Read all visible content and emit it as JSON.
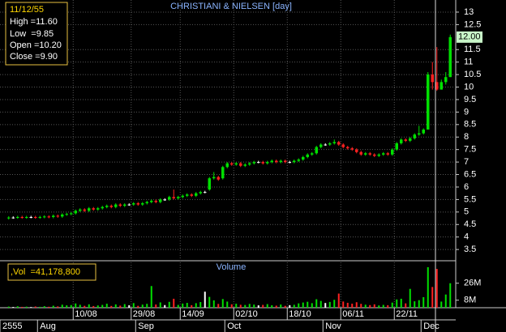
{
  "chart_data": {
    "type": "candlestick",
    "title": "CHRISTIANI & NIELSEN [day]",
    "info": {
      "date": "11/12/55",
      "lines": [
        "High =11.60",
        "Low  =9.85",
        "Open =10.20",
        "Close =9.90"
      ]
    },
    "volume_title": "Volume",
    "volume_info": ",Vol  =41,178,800",
    "last_price_label": "12.00",
    "categories": [
      null,
      null,
      null,
      null,
      null,
      null,
      null,
      null,
      null,
      null,
      null,
      null,
      null,
      null,
      null,
      "10/08",
      null,
      null,
      null,
      null,
      null,
      null,
      null,
      null,
      null,
      null,
      null,
      null,
      "29/08",
      null,
      null,
      null,
      null,
      null,
      null,
      null,
      null,
      null,
      null,
      "14/09",
      null,
      null,
      null,
      null,
      null,
      null,
      null,
      null,
      null,
      null,
      null,
      "02/10",
      null,
      null,
      null,
      null,
      null,
      null,
      null,
      null,
      null,
      null,
      null,
      "18/10",
      null,
      null,
      null,
      null,
      null,
      null,
      null,
      null,
      null,
      null,
      null,
      "06/11",
      null,
      null,
      null,
      null,
      null,
      null,
      null,
      null,
      null,
      null,
      null,
      "22/11",
      null,
      null,
      null,
      null,
      null,
      null,
      null,
      null,
      null,
      null,
      null,
      null
    ],
    "months": [
      "2555",
      null,
      null,
      null,
      null,
      null,
      null,
      "Aug",
      null,
      null,
      null,
      null,
      null,
      null,
      null,
      null,
      null,
      null,
      null,
      null,
      null,
      null,
      null,
      null,
      null,
      null,
      null,
      null,
      null,
      "Sep",
      null,
      null,
      null,
      null,
      null,
      null,
      null,
      null,
      null,
      null,
      null,
      null,
      null,
      null,
      null,
      null,
      null,
      null,
      null,
      "Oct",
      null,
      null,
      null,
      null,
      null,
      null,
      null,
      null,
      null,
      null,
      null,
      null,
      null,
      null,
      null,
      null,
      null,
      null,
      null,
      null,
      null,
      "Nov",
      null,
      null,
      null,
      null,
      null,
      null,
      null,
      null,
      null,
      null,
      null,
      null,
      null,
      null,
      null,
      null,
      null,
      null,
      null,
      null,
      null,
      "Dec",
      null,
      null,
      null,
      null,
      null,
      null
    ],
    "open": [
      4.75,
      4.78,
      4.78,
      4.8,
      4.78,
      4.8,
      4.8,
      4.78,
      4.8,
      4.82,
      4.8,
      4.85,
      4.82,
      4.9,
      4.92,
      4.95,
      5.05,
      5.1,
      5.05,
      5.15,
      5.1,
      5.15,
      5.2,
      5.25,
      5.2,
      5.3,
      5.25,
      5.3,
      5.3,
      5.35,
      5.3,
      5.35,
      5.4,
      5.45,
      5.4,
      5.5,
      5.5,
      5.6,
      5.55,
      5.6,
      5.65,
      5.7,
      5.65,
      5.75,
      5.8,
      5.9,
      6.35,
      6.4,
      6.35,
      6.8,
      6.95,
      6.9,
      6.95,
      6.85,
      6.9,
      6.95,
      7.0,
      7.0,
      6.95,
      7.0,
      7.05,
      7.0,
      7.05,
      7.0,
      7.0,
      7.05,
      7.1,
      7.2,
      7.3,
      7.35,
      7.6,
      7.7,
      7.7,
      7.75,
      7.8,
      7.7,
      7.6,
      7.55,
      7.5,
      7.4,
      7.3,
      7.35,
      7.3,
      7.25,
      7.3,
      7.35,
      7.3,
      7.5,
      7.75,
      7.9,
      7.85,
      7.95,
      8.1,
      8.15,
      8.3,
      10.5,
      10.2,
      9.9,
      10.2,
      10.4
    ],
    "high": [
      4.83,
      4.83,
      4.85,
      4.85,
      4.85,
      4.85,
      4.85,
      4.85,
      4.87,
      4.87,
      4.9,
      4.9,
      4.95,
      4.97,
      5.0,
      5.1,
      5.15,
      5.15,
      5.2,
      5.2,
      5.2,
      5.25,
      5.3,
      5.3,
      5.35,
      5.35,
      5.35,
      5.35,
      5.4,
      5.4,
      5.4,
      5.45,
      5.5,
      5.5,
      5.55,
      5.55,
      5.65,
      5.9,
      5.65,
      5.7,
      5.75,
      5.75,
      5.8,
      5.85,
      5.85,
      6.4,
      6.6,
      6.45,
      6.85,
      7.0,
      7.0,
      7.0,
      7.0,
      6.95,
      7.0,
      7.05,
      7.05,
      7.05,
      7.05,
      7.1,
      7.1,
      7.1,
      7.1,
      7.05,
      7.1,
      7.15,
      7.25,
      7.35,
      7.4,
      7.65,
      7.75,
      7.75,
      7.8,
      7.9,
      7.85,
      7.75,
      7.65,
      7.6,
      7.55,
      7.45,
      7.4,
      7.4,
      7.35,
      7.35,
      7.4,
      7.4,
      7.55,
      7.8,
      7.95,
      7.95,
      8.0,
      8.15,
      8.45,
      8.35,
      10.6,
      11.0,
      11.6,
      10.3,
      10.6,
      12.1
    ],
    "low": [
      4.7,
      4.73,
      4.73,
      4.73,
      4.73,
      4.75,
      4.73,
      4.73,
      4.75,
      4.75,
      4.75,
      4.77,
      4.77,
      4.85,
      4.87,
      4.9,
      5.0,
      5.0,
      5.0,
      5.05,
      5.05,
      5.1,
      5.15,
      5.15,
      5.15,
      5.2,
      5.2,
      5.25,
      5.25,
      5.25,
      5.25,
      5.3,
      5.35,
      5.35,
      5.35,
      5.45,
      5.45,
      5.5,
      5.5,
      5.55,
      5.6,
      5.6,
      5.6,
      5.7,
      5.75,
      5.85,
      6.3,
      6.25,
      6.3,
      6.75,
      6.85,
      6.85,
      6.8,
      6.8,
      6.85,
      6.9,
      6.95,
      6.9,
      6.9,
      6.95,
      6.95,
      6.95,
      6.95,
      6.95,
      6.95,
      7.0,
      7.05,
      7.15,
      7.25,
      7.3,
      7.55,
      7.65,
      7.65,
      7.7,
      7.65,
      7.55,
      7.5,
      7.45,
      7.35,
      7.25,
      7.25,
      7.25,
      7.2,
      7.2,
      7.25,
      7.25,
      7.25,
      7.45,
      7.7,
      7.8,
      7.8,
      7.9,
      8.05,
      8.1,
      8.3,
      9.9,
      9.85,
      9.9,
      10.1,
      10.4
    ],
    "close": [
      4.78,
      4.78,
      4.8,
      4.78,
      4.8,
      4.8,
      4.78,
      4.8,
      4.82,
      4.8,
      4.85,
      4.82,
      4.9,
      4.92,
      4.95,
      5.05,
      5.1,
      5.05,
      5.15,
      5.1,
      5.15,
      5.2,
      5.25,
      5.2,
      5.3,
      5.25,
      5.3,
      5.3,
      5.35,
      5.3,
      5.35,
      5.4,
      5.45,
      5.4,
      5.5,
      5.5,
      5.6,
      5.55,
      5.6,
      5.65,
      5.7,
      5.65,
      5.75,
      5.8,
      5.8,
      6.35,
      6.4,
      6.3,
      6.8,
      6.95,
      6.9,
      6.95,
      6.85,
      6.9,
      6.95,
      7.0,
      7.0,
      6.95,
      7.0,
      7.05,
      7.0,
      7.05,
      7.0,
      7.0,
      7.05,
      7.1,
      7.2,
      7.3,
      7.35,
      7.6,
      7.7,
      7.7,
      7.75,
      7.8,
      7.7,
      7.6,
      7.55,
      7.5,
      7.4,
      7.3,
      7.35,
      7.3,
      7.25,
      7.3,
      7.35,
      7.3,
      7.5,
      7.75,
      7.9,
      7.85,
      7.95,
      8.1,
      8.15,
      8.3,
      10.5,
      10.2,
      9.9,
      10.2,
      10.4,
      12.0
    ],
    "volume": [
      1.2,
      0.8,
      1.5,
      0.9,
      1.1,
      0.7,
      1.3,
      0.9,
      1.6,
      1.0,
      2.1,
      1.4,
      3.2,
      2.5,
      2.8,
      4.5,
      3.1,
      2.0,
      3.6,
      1.8,
      2.4,
      3.0,
      4.2,
      1.9,
      3.5,
      2.2,
      3.8,
      2.6,
      4.9,
      2.0,
      3.3,
      4.1,
      23.0,
      3.4,
      5.6,
      2.8,
      6.2,
      9.5,
      3.0,
      4.4,
      5.1,
      2.7,
      4.8,
      6.0,
      17.0,
      11.5,
      7.8,
      4.0,
      9.2,
      6.5,
      3.6,
      4.2,
      3.1,
      2.9,
      4.0,
      3.3,
      2.5,
      3.0,
      3.8,
      2.6,
      2.2,
      3.4,
      2.0,
      2.7,
      3.1,
      4.6,
      5.5,
      6.3,
      4.8,
      9.0,
      7.2,
      5.0,
      6.1,
      8.4,
      15.0,
      6.6,
      5.2,
      4.3,
      5.8,
      4.1,
      3.2,
      2.8,
      3.6,
      2.4,
      3.0,
      2.7,
      5.4,
      8.8,
      9.5,
      4.6,
      20.0,
      6.8,
      8.0,
      11.2,
      43.0,
      22.0,
      41.18,
      6.5,
      14.0,
      26.0
    ],
    "ylim": [
      3.05,
      13.42
    ],
    "yticks": [
      3.5,
      4,
      4.5,
      5,
      5.5,
      6,
      6.5,
      7,
      7.5,
      8,
      8.5,
      9,
      9.5,
      10,
      10.5,
      11,
      11.5,
      12.5,
      13
    ],
    "vol_ylim": [
      0,
      49
    ],
    "vol_yticks": [
      {
        "value": 8,
        "label": "8M"
      },
      {
        "value": 26,
        "label": "26M"
      }
    ],
    "up_color": "#00e000",
    "down_color": "#ff2020",
    "flat_color": "#ffffff",
    "grid": true
  }
}
